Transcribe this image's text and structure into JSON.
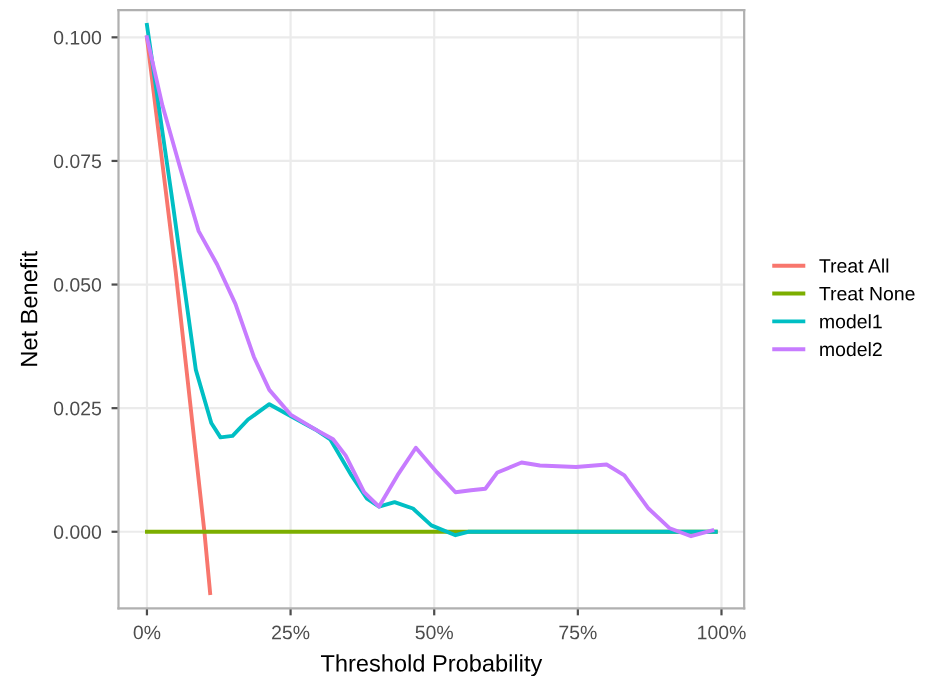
{
  "chart_data": {
    "type": "line",
    "xlabel": "Threshold Probability",
    "ylabel": "Net Benefit",
    "xlim": [
      -4.95,
      103.95
    ],
    "ylim": [
      -0.0155,
      0.1055
    ],
    "xticks": [
      {
        "value": 0,
        "label": "0%"
      },
      {
        "value": 25,
        "label": "25%"
      },
      {
        "value": 50,
        "label": "50%"
      },
      {
        "value": 75,
        "label": "75%"
      },
      {
        "value": 100,
        "label": "100%"
      }
    ],
    "yticks": [
      {
        "value": 0,
        "label": "0.000"
      },
      {
        "value": 0.025,
        "label": "0.025"
      },
      {
        "value": 0.05,
        "label": "0.050"
      },
      {
        "value": 0.075,
        "label": "0.075"
      },
      {
        "value": 0.1,
        "label": "0.100"
      }
    ],
    "grid": true,
    "legend": "right",
    "line_style": "solid",
    "marker": "none",
    "series": [
      {
        "name": "Treat All",
        "color": "#F8766D",
        "x": [
          0,
          5,
          10,
          11
        ],
        "values": [
          0.1,
          0.0526,
          0,
          -0.0124
        ]
      },
      {
        "name": "Treat None",
        "color": "#7CAE00",
        "x": [
          0,
          99
        ],
        "values": [
          0,
          0
        ]
      },
      {
        "name": "model1",
        "color": "#00BFC4",
        "x": [
          0,
          4.3,
          8.5,
          11.2,
          12.8,
          14.9,
          17.6,
          21.3,
          25,
          29.3,
          31.9,
          35.6,
          38.3,
          40.4,
          43.1,
          46.3,
          49.5,
          53.7,
          55.9,
          99
        ],
        "values": [
          0.1025,
          0.068,
          0.0328,
          0.022,
          0.0191,
          0.0194,
          0.0227,
          0.0258,
          0.0234,
          0.0207,
          0.0187,
          0.0114,
          0.0067,
          0.0051,
          0.006,
          0.0047,
          0.0013,
          -0.0007,
          0,
          0
        ]
      },
      {
        "name": "model2",
        "color": "#C77CFF",
        "x": [
          0,
          2.7,
          5.9,
          9,
          12.2,
          15.4,
          18.6,
          21.3,
          25,
          29.3,
          32.4,
          34.6,
          37.8,
          40.4,
          43.6,
          46.8,
          50.5,
          53.7,
          56.4,
          58.9,
          61,
          65.2,
          68.4,
          74.7,
          80,
          83.1,
          87.3,
          91,
          94.7,
          98.4
        ],
        "values": [
          0.1,
          0.0862,
          0.0731,
          0.0608,
          0.0541,
          0.0461,
          0.0354,
          0.0287,
          0.0237,
          0.0207,
          0.0187,
          0.0154,
          0.008,
          0.0051,
          0.0114,
          0.017,
          0.012,
          0.008,
          0.0084,
          0.0087,
          0.012,
          0.014,
          0.0134,
          0.0131,
          0.0136,
          0.0114,
          0.0047,
          0.0007,
          -0.0009,
          0.0003
        ]
      }
    ]
  }
}
